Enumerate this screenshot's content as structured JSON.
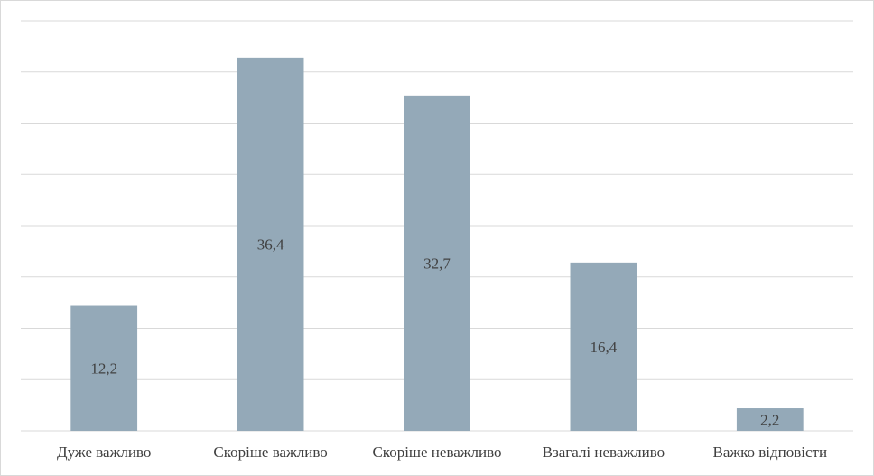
{
  "chart_data": {
    "type": "bar",
    "categories": [
      "Дуже важливо",
      "Скоріше важливо",
      "Скоріше неважливо",
      "Взагалі неважливо",
      "Важко відповісти"
    ],
    "values": [
      12.2,
      36.4,
      32.7,
      16.4,
      2.2
    ],
    "value_labels": [
      "12,2",
      "36,4",
      "32,7",
      "16,4",
      "2,2"
    ],
    "color": "#94a9b8",
    "ylim": [
      0,
      40
    ],
    "yticks": [
      0,
      5,
      10,
      15,
      20,
      25,
      30,
      35,
      40
    ],
    "grid": true,
    "ytick_labels": false
  }
}
